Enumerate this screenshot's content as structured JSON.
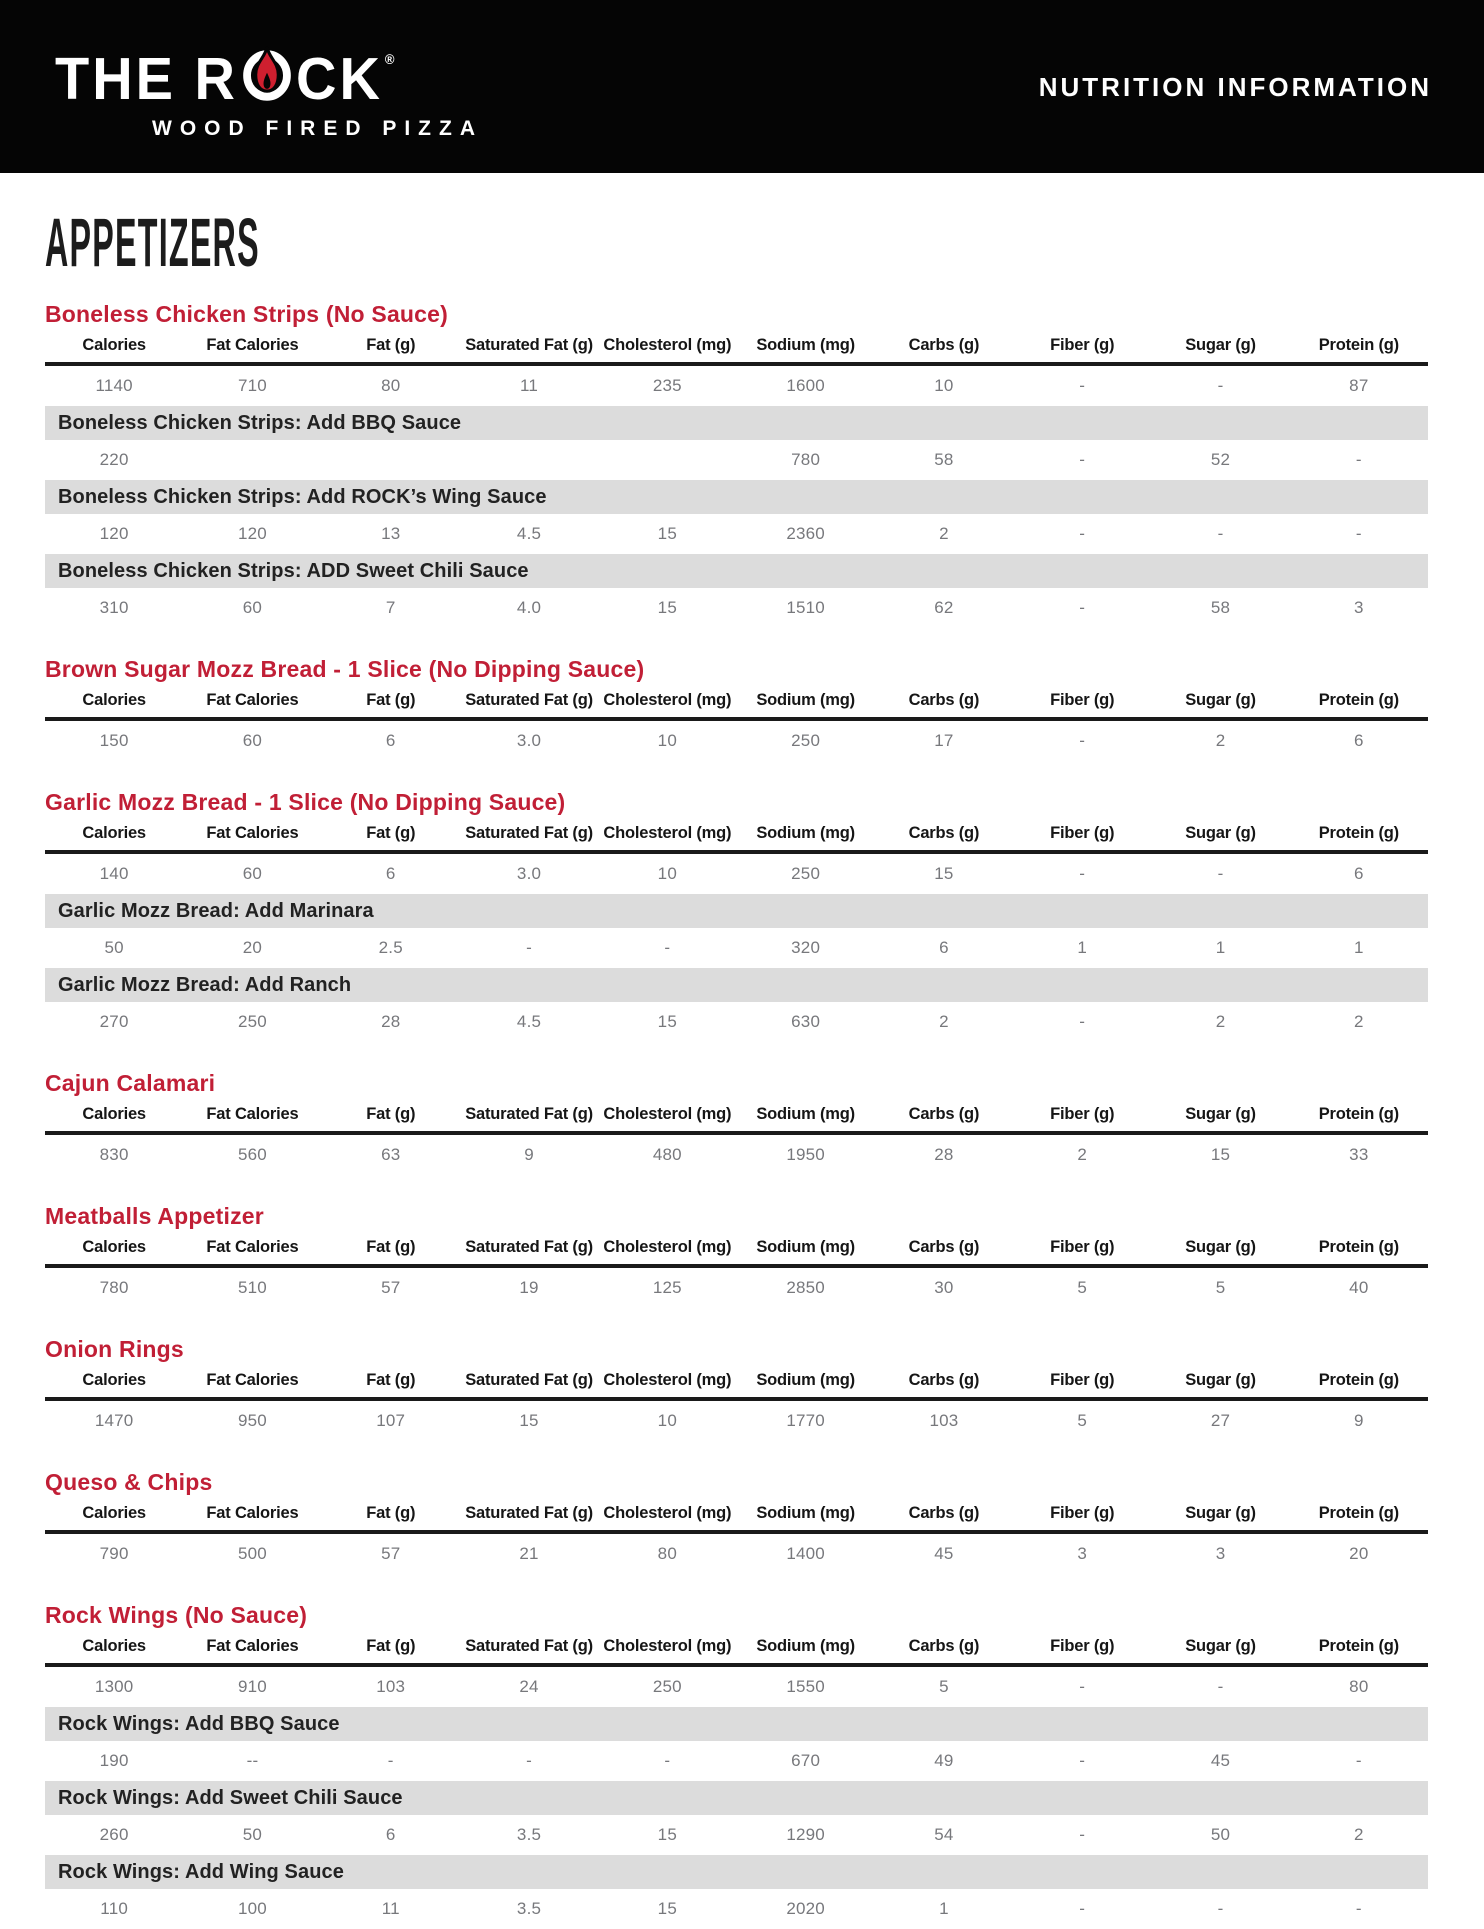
{
  "banner": {
    "brand_part1": "THE R",
    "brand_part2": "CK",
    "brand_reg": "®",
    "brand_subtitle": "WOOD FIRED PIZZA",
    "title": "NUTRITION INFORMATION",
    "flame_icon": "flame-in-letter-o"
  },
  "page_title": "APPETIZERS",
  "colors": {
    "banner_black": "#050505",
    "accent_red": "#c11f36",
    "flame_red": "#cf1f2f",
    "bar_gray": "#dcdcdc",
    "value_gray": "#77787c"
  },
  "columns": [
    "Calories",
    "Fat Calories",
    "Fat (g)",
    "Saturated Fat (g)",
    "Cholesterol (mg)",
    "Sodium (mg)",
    "Carbs (g)",
    "Fiber (g)",
    "Sugar (g)",
    "Protein (g)"
  ],
  "sections": [
    {
      "title": "Boneless Chicken Strips (No Sauce)",
      "rows": [
        {
          "type": "data",
          "values": [
            "1140",
            "710",
            "80",
            "11",
            "235",
            "1600",
            "10",
            "-",
            "-",
            "87"
          ]
        },
        {
          "type": "sub",
          "label": "Boneless Chicken Strips: Add BBQ Sauce"
        },
        {
          "type": "data",
          "values": [
            "220",
            "",
            "",
            "",
            "",
            "780",
            "58",
            "-",
            "52",
            "-"
          ]
        },
        {
          "type": "sub",
          "label": "Boneless Chicken Strips: Add ROCK’s Wing Sauce"
        },
        {
          "type": "data",
          "values": [
            "120",
            "120",
            "13",
            "4.5",
            "15",
            "2360",
            "2",
            "-",
            "-",
            "-"
          ]
        },
        {
          "type": "sub",
          "label": "Boneless Chicken Strips: ADD Sweet Chili Sauce"
        },
        {
          "type": "data",
          "values": [
            "310",
            "60",
            "7",
            "4.0",
            "15",
            "1510",
            "62",
            "-",
            "58",
            "3"
          ]
        }
      ]
    },
    {
      "title": "Brown Sugar Mozz Bread - 1 Slice (No Dipping Sauce)",
      "rows": [
        {
          "type": "data",
          "values": [
            "150",
            "60",
            "6",
            "3.0",
            "10",
            "250",
            "17",
            "-",
            "2",
            "6"
          ]
        }
      ]
    },
    {
      "title": "Garlic Mozz Bread - 1 Slice (No Dipping Sauce)",
      "rows": [
        {
          "type": "data",
          "values": [
            "140",
            "60",
            "6",
            "3.0",
            "10",
            "250",
            "15",
            "-",
            "-",
            "6"
          ]
        },
        {
          "type": "sub",
          "label": "Garlic Mozz Bread: Add Marinara"
        },
        {
          "type": "data",
          "values": [
            "50",
            "20",
            "2.5",
            "-",
            "-",
            "320",
            "6",
            "1",
            "1",
            "1"
          ]
        },
        {
          "type": "sub",
          "label": "Garlic Mozz Bread: Add Ranch"
        },
        {
          "type": "data",
          "values": [
            "270",
            "250",
            "28",
            "4.5",
            "15",
            "630",
            "2",
            "-",
            "2",
            "2"
          ]
        }
      ]
    },
    {
      "title": "Cajun Calamari",
      "rows": [
        {
          "type": "data",
          "values": [
            "830",
            "560",
            "63",
            "9",
            "480",
            "1950",
            "28",
            "2",
            "15",
            "33"
          ]
        }
      ]
    },
    {
      "title": "Meatballs Appetizer",
      "rows": [
        {
          "type": "data",
          "values": [
            "780",
            "510",
            "57",
            "19",
            "125",
            "2850",
            "30",
            "5",
            "5",
            "40"
          ]
        }
      ]
    },
    {
      "title": "Onion Rings",
      "rows": [
        {
          "type": "data",
          "values": [
            "1470",
            "950",
            "107",
            "15",
            "10",
            "1770",
            "103",
            "5",
            "27",
            "9"
          ]
        }
      ]
    },
    {
      "title": "Queso & Chips",
      "rows": [
        {
          "type": "data",
          "values": [
            "790",
            "500",
            "57",
            "21",
            "80",
            "1400",
            "45",
            "3",
            "3",
            "20"
          ]
        }
      ]
    },
    {
      "title": "Rock Wings (No Sauce)",
      "rows": [
        {
          "type": "data",
          "values": [
            "1300",
            "910",
            "103",
            "24",
            "250",
            "1550",
            "5",
            "-",
            "-",
            "80"
          ]
        },
        {
          "type": "sub",
          "label": "Rock Wings: Add BBQ Sauce"
        },
        {
          "type": "data",
          "values": [
            "190",
            "--",
            "-",
            "-",
            "-",
            "670",
            "49",
            "-",
            "45",
            "-"
          ]
        },
        {
          "type": "sub",
          "label": "Rock Wings: Add Sweet Chili Sauce"
        },
        {
          "type": "data",
          "values": [
            "260",
            "50",
            "6",
            "3.5",
            "15",
            "1290",
            "54",
            "-",
            "50",
            "2"
          ]
        },
        {
          "type": "sub",
          "label": "Rock Wings: Add Wing Sauce"
        },
        {
          "type": "data",
          "values": [
            "110",
            "100",
            "11",
            "3.5",
            "15",
            "2020",
            "1",
            "-",
            "-",
            "-"
          ]
        }
      ]
    }
  ]
}
